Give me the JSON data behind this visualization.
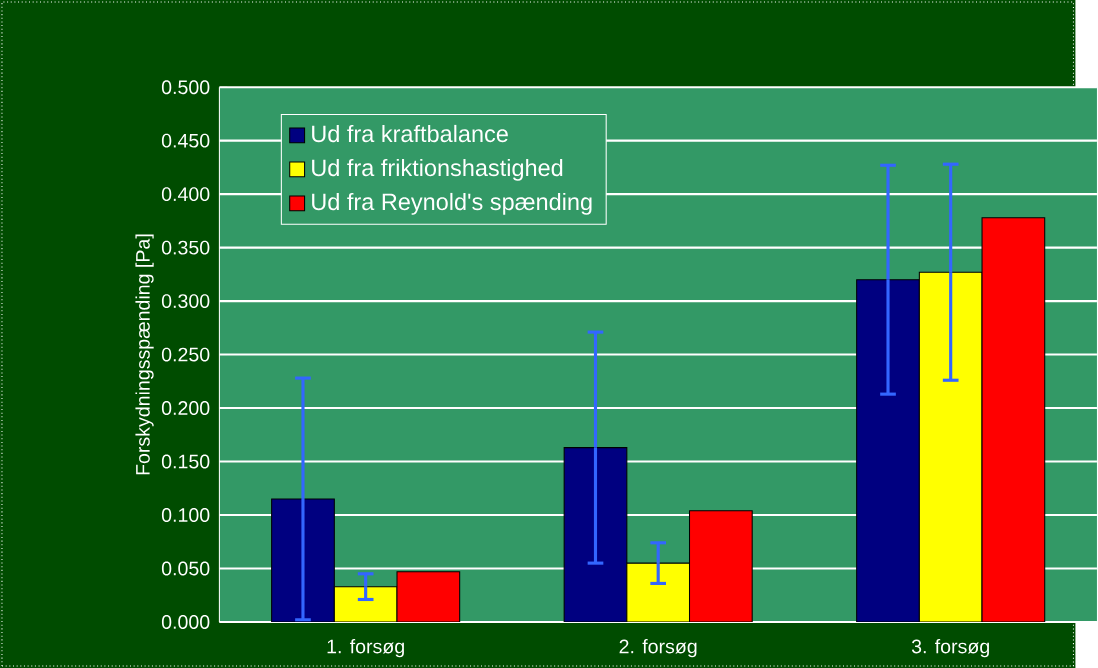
{
  "chart_data": {
    "type": "bar",
    "ylabel": "Forskydningsspænding [Pa]",
    "categories": [
      "1. forsøg",
      "2. forsøg",
      "3. forsøg"
    ],
    "series": [
      {
        "name": "Ud fra kraftbalance",
        "color": "#000080",
        "values": [
          0.115,
          0.163,
          0.32
        ],
        "errors": [
          0.113,
          0.108,
          0.107
        ]
      },
      {
        "name": "Ud fra friktionshastighed",
        "color": "#ffff00",
        "values": [
          0.033,
          0.055,
          0.327
        ],
        "errors": [
          0.012,
          0.019,
          0.101
        ]
      },
      {
        "name": "Ud fra Reynold's spænding",
        "color": "#ff0000",
        "values": [
          0.047,
          0.104,
          0.378
        ]
      }
    ],
    "ylim": [
      0,
      0.5
    ],
    "yticks": [
      {
        "value": 0,
        "label": "0.000"
      },
      {
        "value": 0.05,
        "label": "0.050"
      },
      {
        "value": 0.1,
        "label": "0.100"
      },
      {
        "value": 0.15,
        "label": "0.150"
      },
      {
        "value": 0.2,
        "label": "0.200"
      },
      {
        "value": 0.25,
        "label": "0.250"
      },
      {
        "value": 0.3,
        "label": "0.300"
      },
      {
        "value": 0.35,
        "label": "0.350"
      },
      {
        "value": 0.4,
        "label": "0.400"
      },
      {
        "value": 0.45,
        "label": "0.450"
      },
      {
        "value": 0.5,
        "label": "0.500"
      }
    ],
    "grid": "y",
    "legend": "top left"
  }
}
